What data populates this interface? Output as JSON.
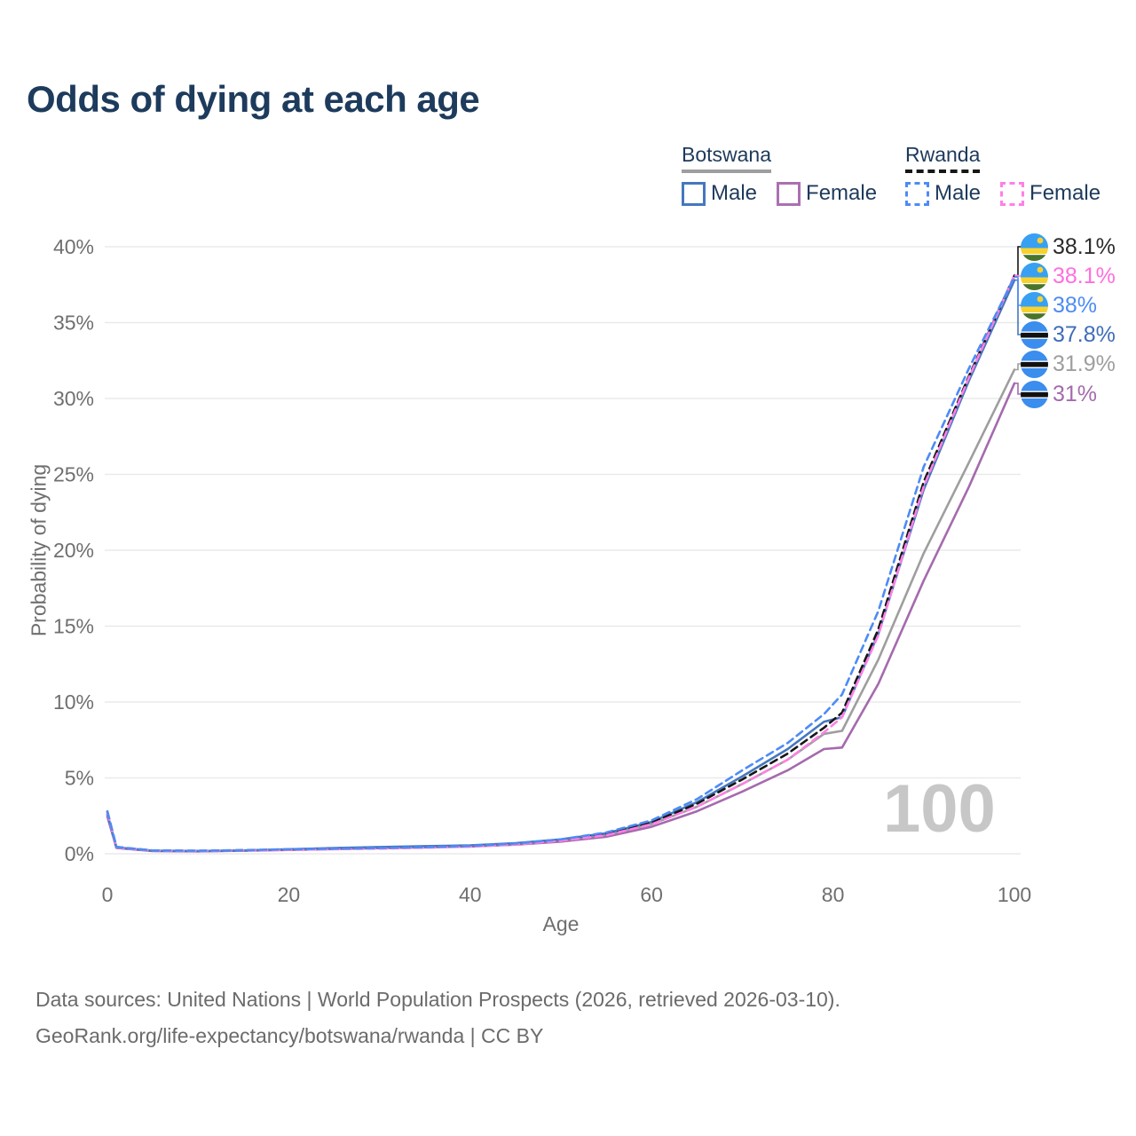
{
  "title": "Odds of dying at each age",
  "watermark": "100",
  "legend": {
    "groups": [
      {
        "label": "Botswana",
        "line_style": "solid",
        "line_color": "#9e9e9e",
        "items": [
          {
            "label": "Male",
            "color": "#4577bd",
            "dashed": false
          },
          {
            "label": "Female",
            "color": "#aa70b2",
            "dashed": false
          }
        ]
      },
      {
        "label": "Rwanda",
        "line_style": "dashed",
        "line_color": "#161616",
        "items": [
          {
            "label": "Male",
            "color": "#4d8bf5",
            "dashed": true
          },
          {
            "label": "Female",
            "color": "#ff7fe6",
            "dashed": true
          }
        ]
      }
    ]
  },
  "footer": {
    "line1": "Data sources: United Nations | World Population Prospects (2026, retrieved 2026-03-10).",
    "line2": "GeoRank.org/life-expectancy/botswana/rwanda | CC BY"
  },
  "chart_data": {
    "type": "line",
    "title": "Odds of dying at each age",
    "xlabel": "Age",
    "ylabel": "Probability of dying",
    "xlim": [
      0,
      100
    ],
    "ylim": [
      0,
      40
    ],
    "x_ticks": [
      0,
      20,
      40,
      60,
      80,
      100
    ],
    "y_ticks": [
      0,
      5,
      10,
      15,
      20,
      25,
      30,
      35,
      40
    ],
    "y_suffix": "%",
    "grid": "horizontal",
    "x": [
      0,
      1,
      5,
      10,
      15,
      20,
      25,
      30,
      35,
      40,
      45,
      50,
      55,
      60,
      65,
      70,
      75,
      79,
      81,
      85,
      90,
      95,
      100
    ],
    "series": [
      {
        "id": "botswana-combined",
        "country": "Botswana",
        "sex": "Combined",
        "color": "#9e9e9e",
        "dashed": false,
        "values": [
          2.55,
          0.4,
          0.19,
          0.17,
          0.21,
          0.28,
          0.35,
          0.41,
          0.46,
          0.52,
          0.65,
          0.88,
          1.25,
          1.95,
          3.1,
          4.6,
          6.2,
          7.9,
          8.1,
          12.8,
          19.8,
          25.8,
          31.9
        ],
        "end_label": {
          "text": "31.9%",
          "color": "#9e9e9e",
          "flag": "botswana",
          "row": 4
        }
      },
      {
        "id": "botswana-female",
        "country": "Botswana",
        "sex": "Female",
        "color": "#a56aae",
        "dashed": false,
        "values": [
          2.45,
          0.38,
          0.18,
          0.16,
          0.2,
          0.25,
          0.31,
          0.37,
          0.42,
          0.48,
          0.6,
          0.8,
          1.12,
          1.78,
          2.8,
          4.1,
          5.5,
          6.9,
          7.0,
          11.2,
          18.0,
          24.2,
          31.0
        ],
        "end_label": {
          "text": "31%",
          "color": "#a56aae",
          "flag": "botswana",
          "row": 5
        }
      },
      {
        "id": "botswana-male",
        "country": "Botswana",
        "sex": "Male",
        "color": "#4577bd",
        "dashed": false,
        "values": [
          2.6,
          0.42,
          0.2,
          0.18,
          0.22,
          0.3,
          0.38,
          0.44,
          0.5,
          0.55,
          0.7,
          0.95,
          1.35,
          2.1,
          3.4,
          5.1,
          6.9,
          8.7,
          9.0,
          14.5,
          24.0,
          31.2,
          37.8
        ],
        "end_label": {
          "text": "37.8%",
          "color": "#3f6db8",
          "flag": "botswana",
          "row": 3
        }
      },
      {
        "id": "rwanda-combined",
        "country": "Rwanda",
        "sex": "Combined",
        "color": "#161616",
        "dashed": true,
        "values": [
          2.75,
          0.44,
          0.21,
          0.19,
          0.23,
          0.28,
          0.32,
          0.36,
          0.42,
          0.5,
          0.65,
          0.9,
          1.3,
          2.05,
          3.3,
          4.9,
          6.6,
          8.3,
          9.3,
          14.8,
          24.5,
          31.5,
          38.1
        ],
        "end_label": {
          "text": "38.1%",
          "color": "#2b2b2b",
          "flag": "rwanda",
          "row": 0
        }
      },
      {
        "id": "rwanda-female",
        "country": "Rwanda",
        "sex": "Female",
        "color": "#ff7fe6",
        "dashed": true,
        "values": [
          2.7,
          0.42,
          0.2,
          0.18,
          0.22,
          0.26,
          0.3,
          0.34,
          0.4,
          0.47,
          0.62,
          0.86,
          1.22,
          1.95,
          3.1,
          4.6,
          6.2,
          8.0,
          9.0,
          14.4,
          24.2,
          31.4,
          38.1
        ],
        "end_label": {
          "text": "38.1%",
          "color": "#ff6ee0",
          "flag": "rwanda",
          "row": 1
        }
      },
      {
        "id": "rwanda-male",
        "country": "Rwanda",
        "sex": "Male",
        "color": "#4d8bf5",
        "dashed": true,
        "values": [
          2.8,
          0.45,
          0.22,
          0.2,
          0.24,
          0.3,
          0.34,
          0.38,
          0.44,
          0.52,
          0.68,
          0.95,
          1.4,
          2.2,
          3.6,
          5.5,
          7.3,
          9.2,
          10.5,
          16.0,
          25.5,
          32.0,
          38.0
        ],
        "end_label": {
          "text": "38%",
          "color": "#4d8bf5",
          "flag": "rwanda",
          "row": 2
        }
      }
    ]
  }
}
